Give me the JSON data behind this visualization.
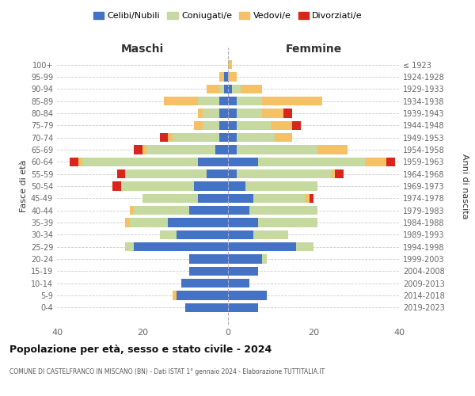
{
  "age_groups": [
    "0-4",
    "5-9",
    "10-14",
    "15-19",
    "20-24",
    "25-29",
    "30-34",
    "35-39",
    "40-44",
    "45-49",
    "50-54",
    "55-59",
    "60-64",
    "65-69",
    "70-74",
    "75-79",
    "80-84",
    "85-89",
    "90-94",
    "95-99",
    "100+"
  ],
  "birth_years": [
    "2019-2023",
    "2014-2018",
    "2009-2013",
    "2004-2008",
    "1999-2003",
    "1994-1998",
    "1989-1993",
    "1984-1988",
    "1979-1983",
    "1974-1978",
    "1969-1973",
    "1964-1968",
    "1959-1963",
    "1954-1958",
    "1949-1953",
    "1944-1948",
    "1939-1943",
    "1934-1938",
    "1929-1933",
    "1924-1928",
    "≤ 1923"
  ],
  "colors": {
    "celibi": "#4472c4",
    "coniugati": "#c5d9a0",
    "vedovi": "#f5c164",
    "divorziati": "#d9261c"
  },
  "maschi": {
    "celibi": [
      10,
      12,
      11,
      9,
      9,
      22,
      12,
      14,
      9,
      7,
      8,
      5,
      7,
      3,
      2,
      2,
      2,
      2,
      1,
      1,
      0
    ],
    "coniugati": [
      0,
      0,
      0,
      0,
      0,
      2,
      4,
      9,
      13,
      13,
      17,
      19,
      27,
      16,
      11,
      4,
      4,
      5,
      1,
      0,
      0
    ],
    "vedovi": [
      0,
      1,
      0,
      0,
      0,
      0,
      0,
      1,
      1,
      0,
      0,
      0,
      1,
      1,
      1,
      2,
      1,
      8,
      3,
      1,
      0
    ],
    "divorziati": [
      0,
      0,
      0,
      0,
      0,
      0,
      0,
      0,
      0,
      0,
      2,
      2,
      2,
      2,
      2,
      0,
      0,
      0,
      0,
      0,
      0
    ]
  },
  "femmine": {
    "celibi": [
      7,
      9,
      5,
      7,
      8,
      16,
      6,
      7,
      5,
      6,
      4,
      2,
      7,
      2,
      2,
      2,
      2,
      2,
      1,
      0,
      0
    ],
    "coniugati": [
      0,
      0,
      0,
      0,
      1,
      4,
      8,
      14,
      16,
      12,
      17,
      22,
      25,
      19,
      9,
      8,
      6,
      6,
      2,
      0,
      0
    ],
    "vedovi": [
      0,
      0,
      0,
      0,
      0,
      0,
      0,
      0,
      0,
      1,
      0,
      1,
      5,
      7,
      4,
      5,
      5,
      14,
      5,
      2,
      1
    ],
    "divorziati": [
      0,
      0,
      0,
      0,
      0,
      0,
      0,
      0,
      0,
      1,
      0,
      2,
      2,
      0,
      0,
      2,
      2,
      0,
      0,
      0,
      0
    ]
  },
  "xlim": 40,
  "title": "Popolazione per età, sesso e stato civile - 2024",
  "subtitle": "COMUNE DI CASTELFRANCO IN MISCANO (BN) - Dati ISTAT 1° gennaio 2024 - Elaborazione TUTTITALIA.IT",
  "xlabel_left": "Maschi",
  "xlabel_right": "Femmine",
  "ylabel_left": "Fasce di età",
  "ylabel_right": "Anni di nascita",
  "legend_labels": [
    "Celibi/Nubili",
    "Coniugati/e",
    "Vedovi/e",
    "Divorziati/e"
  ],
  "bg_color": "#ffffff",
  "grid_color": "#cccccc",
  "tick_label_color": "#666666"
}
